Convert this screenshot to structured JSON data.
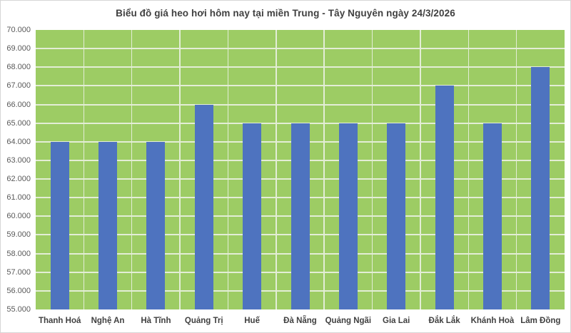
{
  "chart_data": {
    "type": "bar",
    "title": "Biểu đồ giá heo hơi hôm nay tại miền Trung - Tây Nguyên ngày 24/3/2026",
    "categories": [
      "Thanh Hoá",
      "Nghệ An",
      "Hà Tĩnh",
      "Quảng Trị",
      "Huế",
      "Đà Nẵng",
      "Quảng Ngãi",
      "Gia Lai",
      "Đắk Lắk",
      "Khánh Hoà",
      "Lâm Đồng"
    ],
    "values": [
      64000,
      64000,
      64000,
      66000,
      65000,
      65000,
      65000,
      65000,
      67000,
      65000,
      68000
    ],
    "xlabel": "",
    "ylabel": "",
    "ylim": [
      55000,
      70000
    ],
    "ytick_step": 1000,
    "ytick_labels": [
      "55.000",
      "56.000",
      "57.000",
      "58.000",
      "59.000",
      "60.000",
      "61.000",
      "62.000",
      "63.000",
      "64.000",
      "65.000",
      "66.000",
      "67.000",
      "68.000",
      "69.000",
      "70.000"
    ],
    "grid": true,
    "legend_position": "none",
    "colors": {
      "bar": "#4E73BF",
      "plot_background": "#9DCC64",
      "gridline": "#E3EDD6",
      "title_text": "#404040",
      "axis_tick_text": "#595959",
      "category_text": "#404040",
      "frame_border": "#D6D6D6",
      "page_background": "#FFFFFF"
    }
  }
}
